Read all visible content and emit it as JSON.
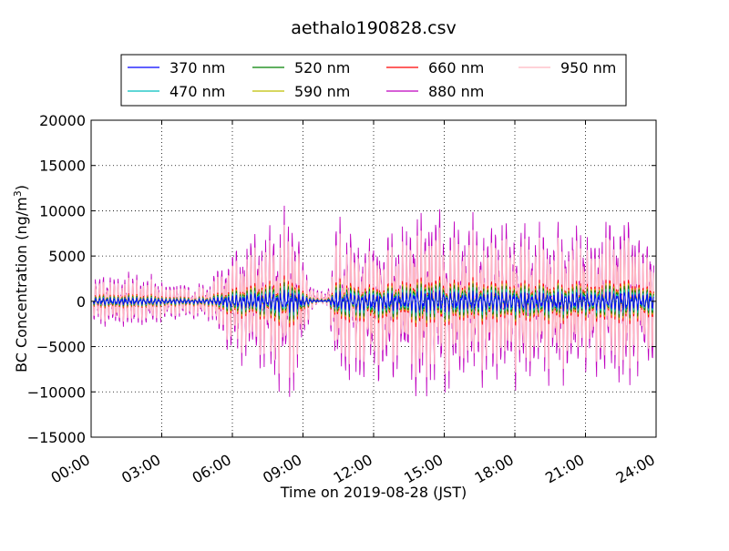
{
  "chart_data": {
    "type": "line",
    "title": "aethalo190828.csv",
    "xlabel": "Time on 2019-08-28 (JST)",
    "ylabel_main": "BC Concentration (ng/m",
    "ylabel_sup": "3",
    "ylabel_close": ")",
    "x_unit": "hours",
    "xlim": [
      0,
      24
    ],
    "ylim": [
      -15000,
      20000
    ],
    "x_ticks": [
      {
        "value": 0,
        "label": "00:00"
      },
      {
        "value": 3,
        "label": "03:00"
      },
      {
        "value": 6,
        "label": "06:00"
      },
      {
        "value": 9,
        "label": "09:00"
      },
      {
        "value": 12,
        "label": "12:00"
      },
      {
        "value": 15,
        "label": "15:00"
      },
      {
        "value": 18,
        "label": "18:00"
      },
      {
        "value": 21,
        "label": "21:00"
      },
      {
        "value": 24,
        "label": "24:00"
      }
    ],
    "y_ticks": [
      {
        "value": -15000,
        "label": "−15000"
      },
      {
        "value": -10000,
        "label": "−10000"
      },
      {
        "value": -5000,
        "label": "−5000"
      },
      {
        "value": 0,
        "label": "0"
      },
      {
        "value": 5000,
        "label": "5000"
      },
      {
        "value": 10000,
        "label": "10000"
      },
      {
        "value": 15000,
        "label": "15000"
      },
      {
        "value": 20000,
        "label": "20000"
      }
    ],
    "grid": true,
    "legend_position": "top",
    "envelope": {
      "x": [
        0.1,
        1,
        2,
        3,
        4,
        5,
        5.5,
        6,
        7,
        8,
        8.5,
        9,
        9.5,
        10,
        10.5,
        11,
        12,
        13,
        14,
        15,
        16,
        17,
        18,
        19,
        20,
        21,
        22,
        23,
        24
      ],
      "amp": [
        3000,
        3200,
        3600,
        2500,
        2000,
        2300,
        4500,
        6000,
        8000,
        10000,
        11000,
        6000,
        1000,
        700,
        10000,
        9000,
        9000,
        8500,
        11500,
        10000,
        9500,
        9000,
        9500,
        8500,
        9000,
        8500,
        9500,
        10000,
        8000
      ]
    },
    "series": [
      {
        "name": "370 nm",
        "color": "#0000ff",
        "scale": 0.12
      },
      {
        "name": "470 nm",
        "color": "#00bfbf",
        "scale": 0.16
      },
      {
        "name": "520 nm",
        "color": "#008000",
        "scale": 0.2
      },
      {
        "name": "590 nm",
        "color": "#bfbf00",
        "scale": 0.23
      },
      {
        "name": "660 nm",
        "color": "#ff0000",
        "scale": 0.27
      },
      {
        "name": "880 nm",
        "color": "#bf00bf",
        "scale": 1.0
      },
      {
        "name": "950 nm",
        "color": "#ffb6c1",
        "scale": 0.8
      }
    ]
  }
}
